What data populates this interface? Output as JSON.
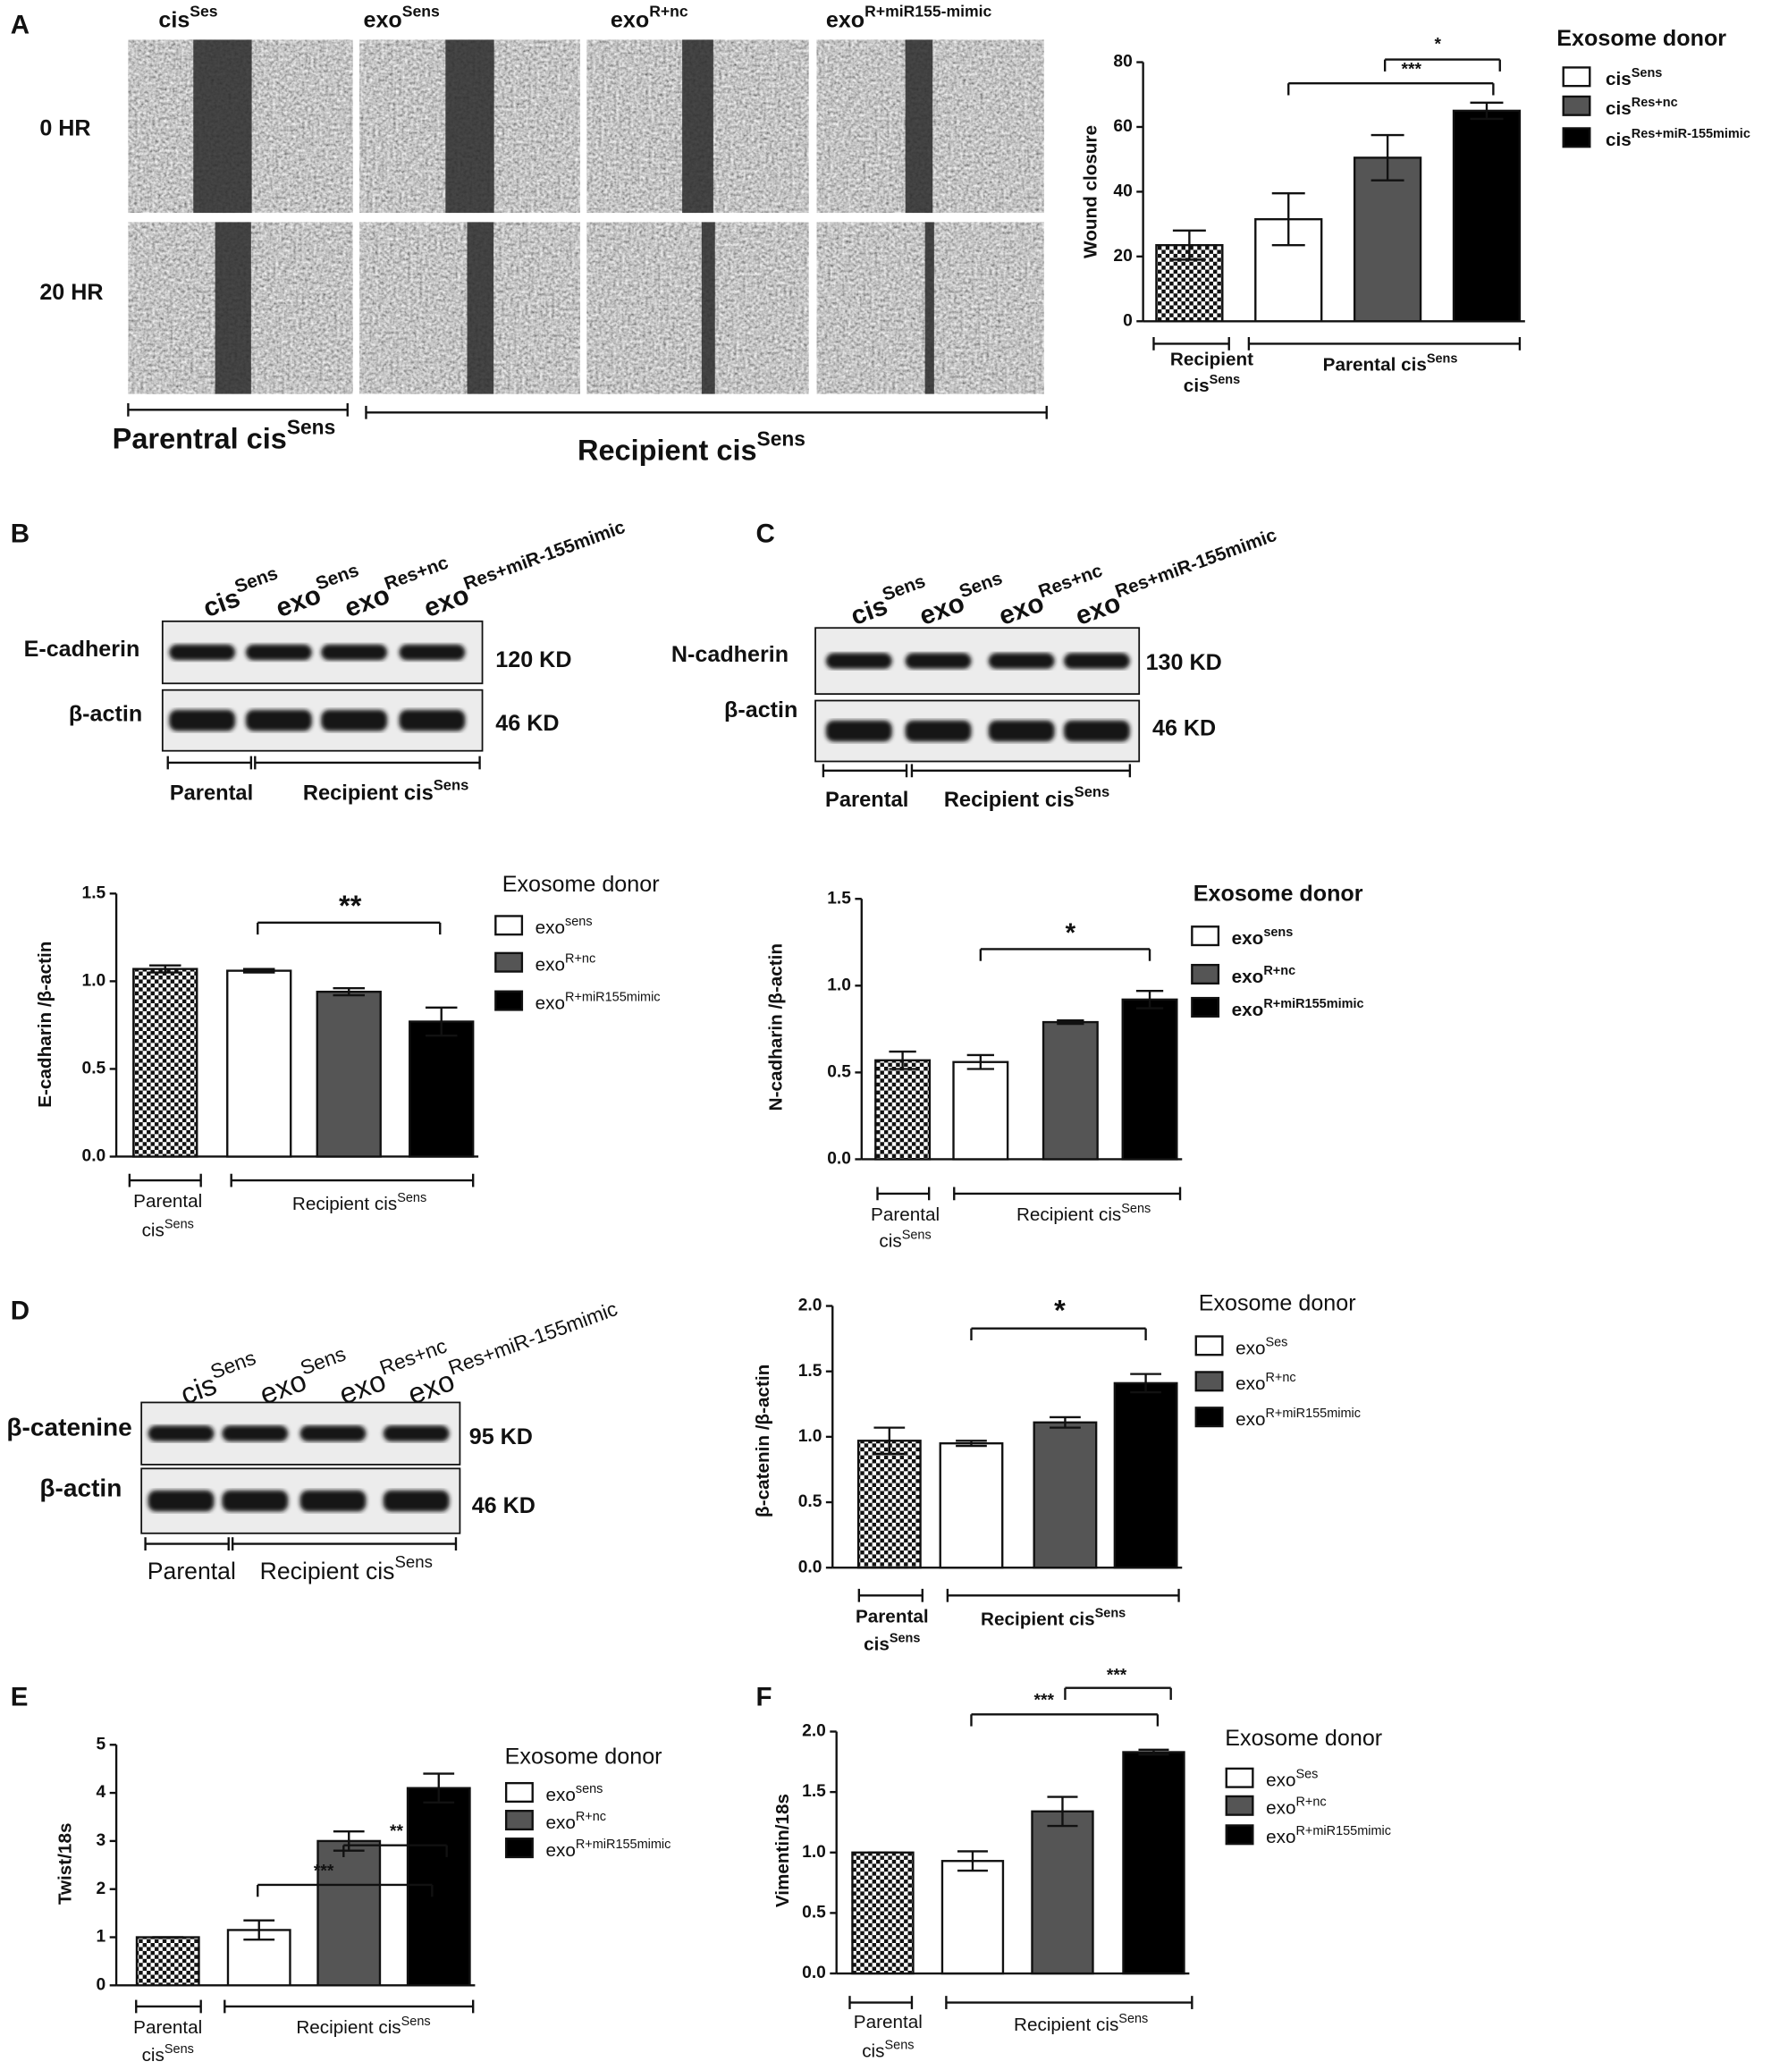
{
  "panel_labels": [
    "A",
    "B",
    "C",
    "D",
    "E",
    "F"
  ],
  "panel_a": {
    "columns": [
      {
        "text": "cis",
        "sup": "Ses"
      },
      {
        "text": "exo",
        "sup": "Sens"
      },
      {
        "text": "exo",
        "sup": "R+nc"
      },
      {
        "text": "exo",
        "sup": "R+miR155-mimic"
      }
    ],
    "rows": [
      "0 HR",
      "20 HR"
    ],
    "groups": [
      {
        "text": "Parentral cis",
        "sup": "Sens"
      },
      {
        "text": "Recipient cis",
        "sup": "Sens"
      }
    ]
  },
  "blots": [
    {
      "lanes": [
        {
          "text": "cis",
          "sup": "Sens"
        },
        {
          "text": "exo",
          "sup": "Sens"
        },
        {
          "text": "exo",
          "sup": "Res+nc"
        },
        {
          "text": "exo",
          "sup": "Res+miR-155mimic"
        }
      ],
      "proteins": [
        "E-cadherin",
        "β-actin"
      ],
      "sizes": [
        "120 KD",
        "46 KD"
      ],
      "groups": [
        {
          "text": "Parental"
        },
        {
          "text": "Recipient cis",
          "sup": "Sens"
        }
      ]
    },
    {
      "lanes": [
        {
          "text": "cis",
          "sup": "Sens"
        },
        {
          "text": "exo",
          "sup": "Sens"
        },
        {
          "text": "exo",
          "sup": "Res+nc"
        },
        {
          "text": "exo",
          "sup": "Res+miR-155mimic"
        }
      ],
      "proteins": [
        "N-cadherin",
        "β-actin"
      ],
      "sizes": [
        "130 KD",
        "46 KD"
      ],
      "groups": [
        {
          "text": "Parental"
        },
        {
          "text": "Recipient cis",
          "sup": "Sens"
        }
      ]
    },
    {
      "lanes": [
        {
          "text": "cis",
          "sup": "Sens"
        },
        {
          "text": "exo",
          "sup": "Sens"
        },
        {
          "text": "exo",
          "sup": "Res+nc"
        },
        {
          "text": "exo",
          "sup": "Res+miR-155mimic"
        }
      ],
      "proteins": [
        "β-catenine",
        "β-actin"
      ],
      "sizes": [
        "95 KD",
        "46 KD"
      ],
      "groups": [
        {
          "text": "Parental"
        },
        {
          "text": "Recipient cis",
          "sup": "Sens"
        }
      ]
    }
  ],
  "chart_data": [
    {
      "type": "bar",
      "ylabel": "Wound closure",
      "ylim": [
        0,
        80
      ],
      "yticks": [
        0,
        20,
        40,
        60,
        80
      ],
      "values": [
        23.5,
        31.5,
        50.5,
        65
      ],
      "errors": [
        4.5,
        8,
        7,
        2.5
      ],
      "bar_fills": [
        "checker",
        "#ffffff",
        "#555555",
        "#000000"
      ],
      "legend_title": "Exosome donor",
      "legend": [
        {
          "text": "cis",
          "sup": "Sens"
        },
        {
          "text": "cis",
          "sup": "Res+nc"
        },
        {
          "text": "cis",
          "sup": "Res+miR-155mimic"
        }
      ],
      "groups": [
        [
          {
            "text": "Recipient"
          },
          {
            "text": "cis",
            "sup": "Sens"
          }
        ],
        [
          {
            "text": "Parental cis",
            "sup": "Sens"
          }
        ]
      ],
      "annotations": [
        "***",
        "*"
      ]
    },
    {
      "type": "bar",
      "ylabel": "E-cadharin /β-actin",
      "ylim": [
        0,
        1.5
      ],
      "yticks": [
        {
          "value": 0,
          "label": "0.0"
        },
        {
          "value": 0.5,
          "label": "0.5"
        },
        {
          "value": 1,
          "label": "1.0"
        },
        {
          "value": 1.5,
          "label": "1.5"
        }
      ],
      "values": [
        1.07,
        1.06,
        0.94,
        0.77
      ],
      "errors": [
        0.02,
        0.01,
        0.02,
        0.08
      ],
      "bar_fills": [
        "checker",
        "#ffffff",
        "#555555",
        "#000000"
      ],
      "legend_title": "Exosome donor",
      "legend": [
        {
          "text": "exo",
          "sup": "sens"
        },
        {
          "text": "exo",
          "sup": "R+nc"
        },
        {
          "text": "exo",
          "sup": "R+miR155mimic"
        }
      ],
      "groups": [
        [
          {
            "text": "Parental"
          },
          {
            "text": "cis",
            "sup": "Sens"
          }
        ],
        [
          {
            "text": "Recipient cis",
            "sup": "Sens"
          }
        ]
      ],
      "annotations": [
        "**"
      ]
    },
    {
      "type": "bar",
      "ylabel": "N-cadharin /β-actin",
      "ylim": [
        0,
        1.5
      ],
      "yticks": [
        {
          "value": 0,
          "label": "0.0"
        },
        {
          "value": 0.5,
          "label": "0.5"
        },
        {
          "value": 1,
          "label": "1.0"
        },
        {
          "value": 1.5,
          "label": "1.5"
        }
      ],
      "values": [
        0.57,
        0.56,
        0.79,
        0.92
      ],
      "errors": [
        0.05,
        0.04,
        0.01,
        0.05
      ],
      "bar_fills": [
        "checker",
        "#ffffff",
        "#555555",
        "#000000"
      ],
      "legend_title": "Exosome donor",
      "legend": [
        {
          "text": "exo",
          "sup": "sens"
        },
        {
          "text": "exo",
          "sup": "R+nc"
        },
        {
          "text": "exo",
          "sup": "R+miR155mimic"
        }
      ],
      "groups": [
        [
          {
            "text": "Parental"
          },
          {
            "text": "cis",
            "sup": "Sens"
          }
        ],
        [
          {
            "text": "Recipient cis",
            "sup": "Sens"
          }
        ]
      ],
      "annotations": [
        "*"
      ]
    },
    {
      "type": "bar",
      "ylabel": "β-catenin /β-actin",
      "ylim": [
        0,
        2
      ],
      "yticks": [
        {
          "value": 0,
          "label": "0.0"
        },
        {
          "value": 0.5,
          "label": "0.5"
        },
        {
          "value": 1,
          "label": "1.0"
        },
        {
          "value": 1.5,
          "label": "1.5"
        },
        {
          "value": 2,
          "label": "2.0"
        }
      ],
      "values": [
        0.97,
        0.95,
        1.11,
        1.41
      ],
      "errors": [
        0.1,
        0.02,
        0.04,
        0.07
      ],
      "bar_fills": [
        "checker",
        "#ffffff",
        "#555555",
        "#000000"
      ],
      "legend_title": "Exosome donor",
      "legend": [
        {
          "text": "exo",
          "sup": "Ses"
        },
        {
          "text": "exo",
          "sup": "R+nc"
        },
        {
          "text": "exo",
          "sup": "R+miR155mimic"
        }
      ],
      "groups": [
        [
          {
            "text": "Parental"
          },
          {
            "text": "cis",
            "sup": "Sens"
          }
        ],
        [
          {
            "text": "Recipient  cis",
            "sup": "Sens"
          }
        ]
      ],
      "annotations": [
        "*"
      ]
    },
    {
      "type": "bar",
      "ylabel": "Twist/18s",
      "ylim": [
        0,
        5
      ],
      "yticks": [
        0,
        1,
        2,
        3,
        4,
        5
      ],
      "values": [
        1,
        1.15,
        3,
        4.1
      ],
      "errors": [
        0,
        0.2,
        0.2,
        0.3
      ],
      "bar_fills": [
        "checker",
        "#ffffff",
        "#555555",
        "#000000"
      ],
      "legend_title": "Exosome donor",
      "legend": [
        {
          "text": "exo",
          "sup": "sens"
        },
        {
          "text": "exo",
          "sup": "R+nc"
        },
        {
          "text": "exo",
          "sup": "R+miR155mimic"
        }
      ],
      "groups": [
        [
          {
            "text": "Parental"
          },
          {
            "text": "cis",
            "sup": "Sens"
          }
        ],
        [
          {
            "text": "Recipient cis",
            "sup": "Sens"
          }
        ]
      ],
      "annotations": [
        "***",
        "**"
      ]
    },
    {
      "type": "bar",
      "ylabel": "Vimentin/18s",
      "ylim": [
        0,
        2
      ],
      "yticks": [
        {
          "value": 0,
          "label": "0.0"
        },
        {
          "value": 0.5,
          "label": "0.5"
        },
        {
          "value": 1,
          "label": "1.0"
        },
        {
          "value": 1.5,
          "label": "1.5"
        },
        {
          "value": 2,
          "label": "2.0"
        }
      ],
      "values": [
        1,
        0.93,
        1.34,
        1.83
      ],
      "errors": [
        0,
        0.08,
        0.12,
        0.02
      ],
      "bar_fills": [
        "checker",
        "#ffffff",
        "#555555",
        "#000000"
      ],
      "legend_title": "Exosome donor",
      "legend": [
        {
          "text": "exo",
          "sup": "Ses"
        },
        {
          "text": "exo",
          "sup": "R+nc"
        },
        {
          "text": "exo",
          "sup": "R+miR155mimic"
        }
      ],
      "groups": [
        [
          {
            "text": "Parental"
          },
          {
            "text": "cis",
            "sup": "Sens"
          }
        ],
        [
          {
            "text": "Recipient cis",
            "sup": "Sens"
          }
        ]
      ],
      "annotations": [
        "***",
        "***"
      ]
    }
  ]
}
